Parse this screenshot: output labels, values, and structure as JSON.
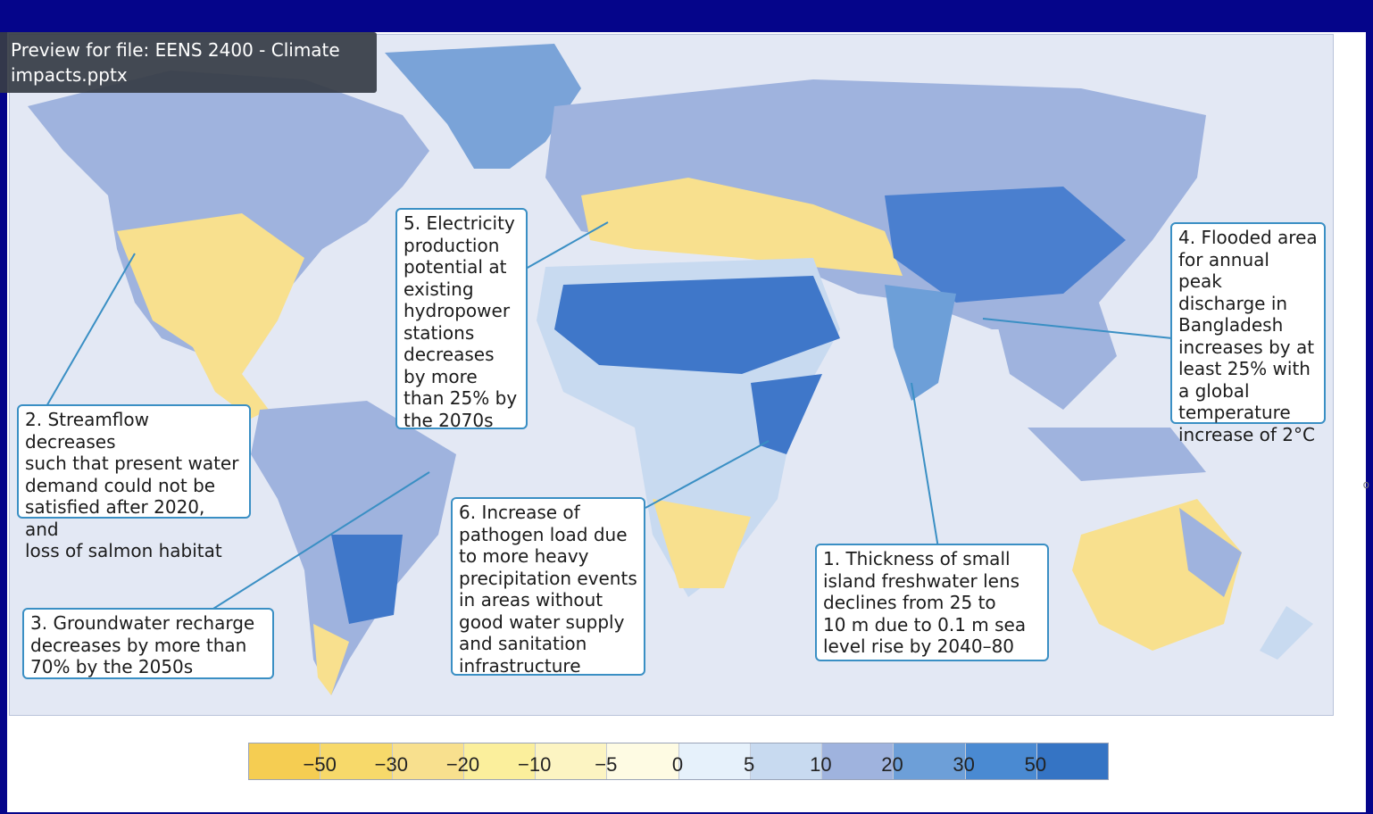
{
  "tooltip": {
    "text": "Preview for file: EENS 2400 - Climate\nimpacts.pptx"
  },
  "callouts": {
    "c1": "1. Thickness of small\nisland freshwater lens\ndeclines from 25 to\n10 m due to 0.1 m sea\nlevel rise by 2040–80",
    "c2": "2. Streamflow decreases\nsuch that present water\ndemand could not be\nsatisfied after 2020, and\nloss of salmon habitat",
    "c3": "3. Groundwater recharge\ndecreases by more than\n70% by the 2050s",
    "c4": "4. Flooded area\nfor annual peak\ndischarge in\nBangladesh\nincreases by at\nleast 25% with\na global\ntemperature\nincrease of 2°C",
    "c5": "5. Electricity\nproduction\npotential at\nexisting\nhydropower\nstations\ndecreases\nby more\nthan 25% by\nthe 2070s",
    "c6": "6. Increase of\npathogen load due\nto more heavy\nprecipitation events\nin areas without\ngood water supply\nand sanitation\ninfrastructure"
  },
  "legend": {
    "colors": [
      "#f5cd52",
      "#f7d96a",
      "#f8e08e",
      "#fbef9c",
      "#fcf4c2",
      "#fefbe3",
      "#e6f1fb",
      "#c8daf0",
      "#9fb3de",
      "#6d9fd8",
      "#4a8ad2",
      "#3574c4"
    ],
    "ticks": [
      "−50",
      "−30",
      "−20",
      "−10",
      "−5",
      "0",
      "5",
      "10",
      "20",
      "30",
      "50"
    ]
  },
  "map": {
    "land_colors": {
      "yellow": "#f8e08e",
      "paleyellow": "#fbefb0",
      "lightblue": "#c8daf0",
      "midblue": "#9fb3de",
      "darkblue": "#4a7fcf",
      "white": "#eef3fa"
    }
  },
  "edge_mark": "o"
}
